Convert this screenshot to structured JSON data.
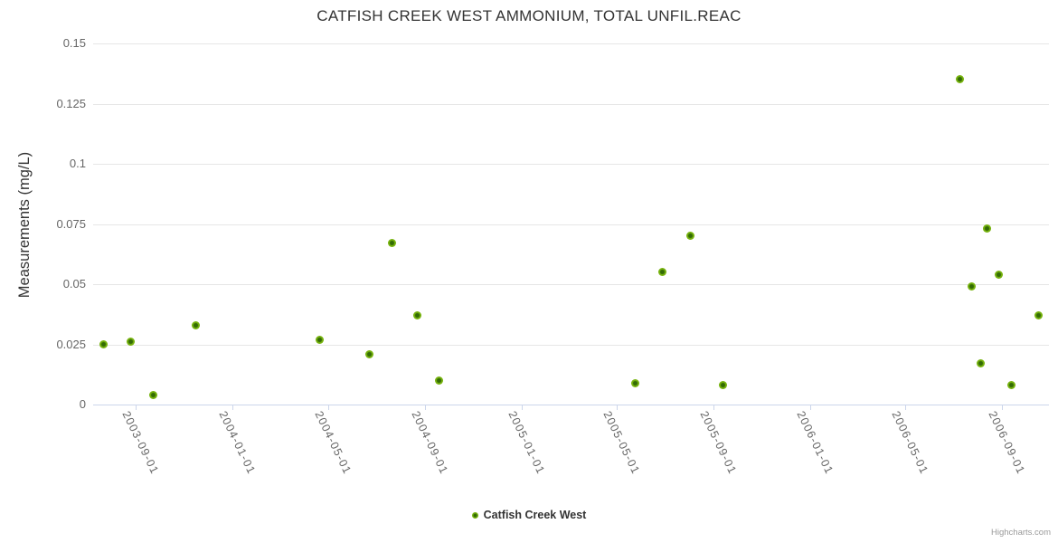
{
  "chart": {
    "title": "CATFISH CREEK WEST AMMONIUM, TOTAL UNFIL.REAC",
    "y_axis_title": "Measurements (mg/L)",
    "credits": "Highcharts.com"
  },
  "legend": {
    "items": [
      {
        "label": "Catfish Creek West",
        "color": "#77b30e"
      }
    ]
  },
  "colors": {
    "marker": "#77b30e",
    "marker_center": "#336b05",
    "grid": "#e6e6e6",
    "axis": "#ccd6eb",
    "tick_label": "#666666",
    "text": "#333333",
    "credits": "#999999",
    "background": "#ffffff"
  },
  "chart_data": {
    "type": "scatter",
    "title": "CATFISH CREEK WEST AMMONIUM, TOTAL UNFIL.REAC",
    "xlabel": "",
    "ylabel": "Measurements (mg/L)",
    "ylim": [
      0,
      0.15
    ],
    "y_ticks": [
      0,
      0.025,
      0.05,
      0.075,
      0.1,
      0.125,
      0.15
    ],
    "y_tick_labels": [
      "0",
      "0.025",
      "0.05",
      "0.075",
      "0.1",
      "0.125",
      "0.15"
    ],
    "x_ticks": [
      "2003-09-01",
      "2004-01-01",
      "2004-05-01",
      "2004-09-01",
      "2005-01-01",
      "2005-05-01",
      "2005-09-01",
      "2006-01-01",
      "2006-05-01",
      "2006-09-01"
    ],
    "x_range": [
      "2003-07-09",
      "2006-10-30"
    ],
    "grid": true,
    "legend_position": "bottom-center",
    "series": [
      {
        "name": "Catfish Creek West",
        "color": "#77b30e",
        "points": [
          [
            "2003-07-22",
            0.025
          ],
          [
            "2003-08-25",
            0.026
          ],
          [
            "2003-09-23",
            0.004
          ],
          [
            "2003-11-16",
            0.033
          ],
          [
            "2004-04-21",
            0.027
          ],
          [
            "2004-06-23",
            0.021
          ],
          [
            "2004-07-21",
            0.067
          ],
          [
            "2004-08-22",
            0.037
          ],
          [
            "2004-09-18",
            0.01
          ],
          [
            "2005-05-25",
            0.009
          ],
          [
            "2005-06-28",
            0.055
          ],
          [
            "2005-08-03",
            0.07
          ],
          [
            "2005-09-13",
            0.008
          ],
          [
            "2006-07-09",
            0.135
          ],
          [
            "2006-07-24",
            0.049
          ],
          [
            "2006-08-05",
            0.017
          ],
          [
            "2006-08-13",
            0.073
          ],
          [
            "2006-08-27",
            0.054
          ],
          [
            "2006-09-12",
            0.008
          ],
          [
            "2006-10-17",
            0.037
          ]
        ]
      }
    ]
  }
}
